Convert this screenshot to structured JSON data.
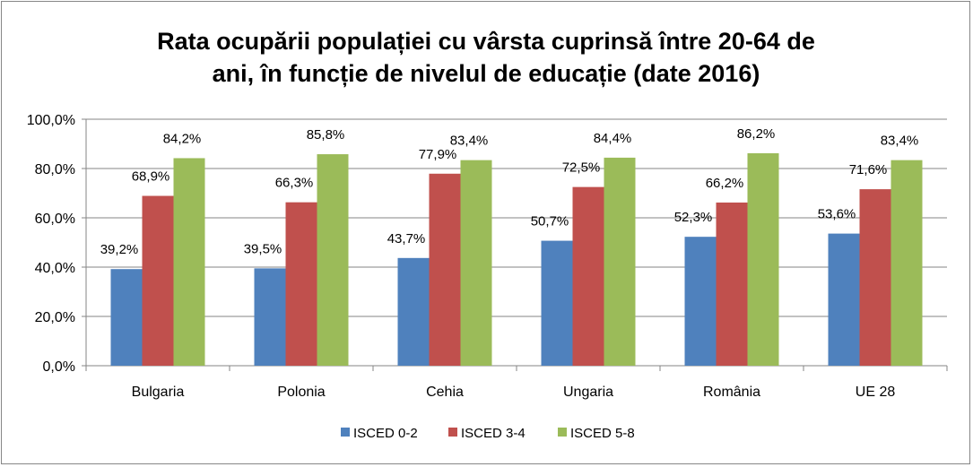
{
  "chart_data": {
    "type": "bar",
    "title_line1": "Rata ocupării populației cu vârsta cuprinsă între 20-64 de",
    "title_line2": "ani, în funcție de nivelul de educație (date 2016)",
    "categories": [
      "Bulgaria",
      "Polonia",
      "Cehia",
      "Ungaria",
      "România",
      "UE 28"
    ],
    "series": [
      {
        "name": "ISCED 0-2",
        "color": "#4F81BD",
        "values": [
          39.2,
          39.5,
          43.7,
          50.7,
          52.3,
          53.6
        ],
        "labels": [
          "39,2%",
          "39,5%",
          "43,7%",
          "50,7%",
          "52,3%",
          "53,6%"
        ]
      },
      {
        "name": "ISCED 3-4",
        "color": "#C0504D",
        "values": [
          68.9,
          66.3,
          77.9,
          72.5,
          66.2,
          71.6
        ],
        "labels": [
          "68,9%",
          "66,3%",
          "77,9%",
          "72,5%",
          "66,2%",
          "71,6%"
        ]
      },
      {
        "name": "ISCED 5-8",
        "color": "#9BBB59",
        "values": [
          84.2,
          85.8,
          83.4,
          84.4,
          86.2,
          83.4
        ],
        "labels": [
          "84,2%",
          "85,8%",
          "83,4%",
          "84,4%",
          "86,2%",
          "83,4%"
        ]
      }
    ],
    "yticks": [
      0,
      20,
      40,
      60,
      80,
      100
    ],
    "ytick_labels": [
      "0,0%",
      "20,0%",
      "40,0%",
      "60,0%",
      "80,0%",
      "100,0%"
    ],
    "ylim": [
      0,
      100
    ],
    "grid": true,
    "legend_position": "bottom"
  }
}
